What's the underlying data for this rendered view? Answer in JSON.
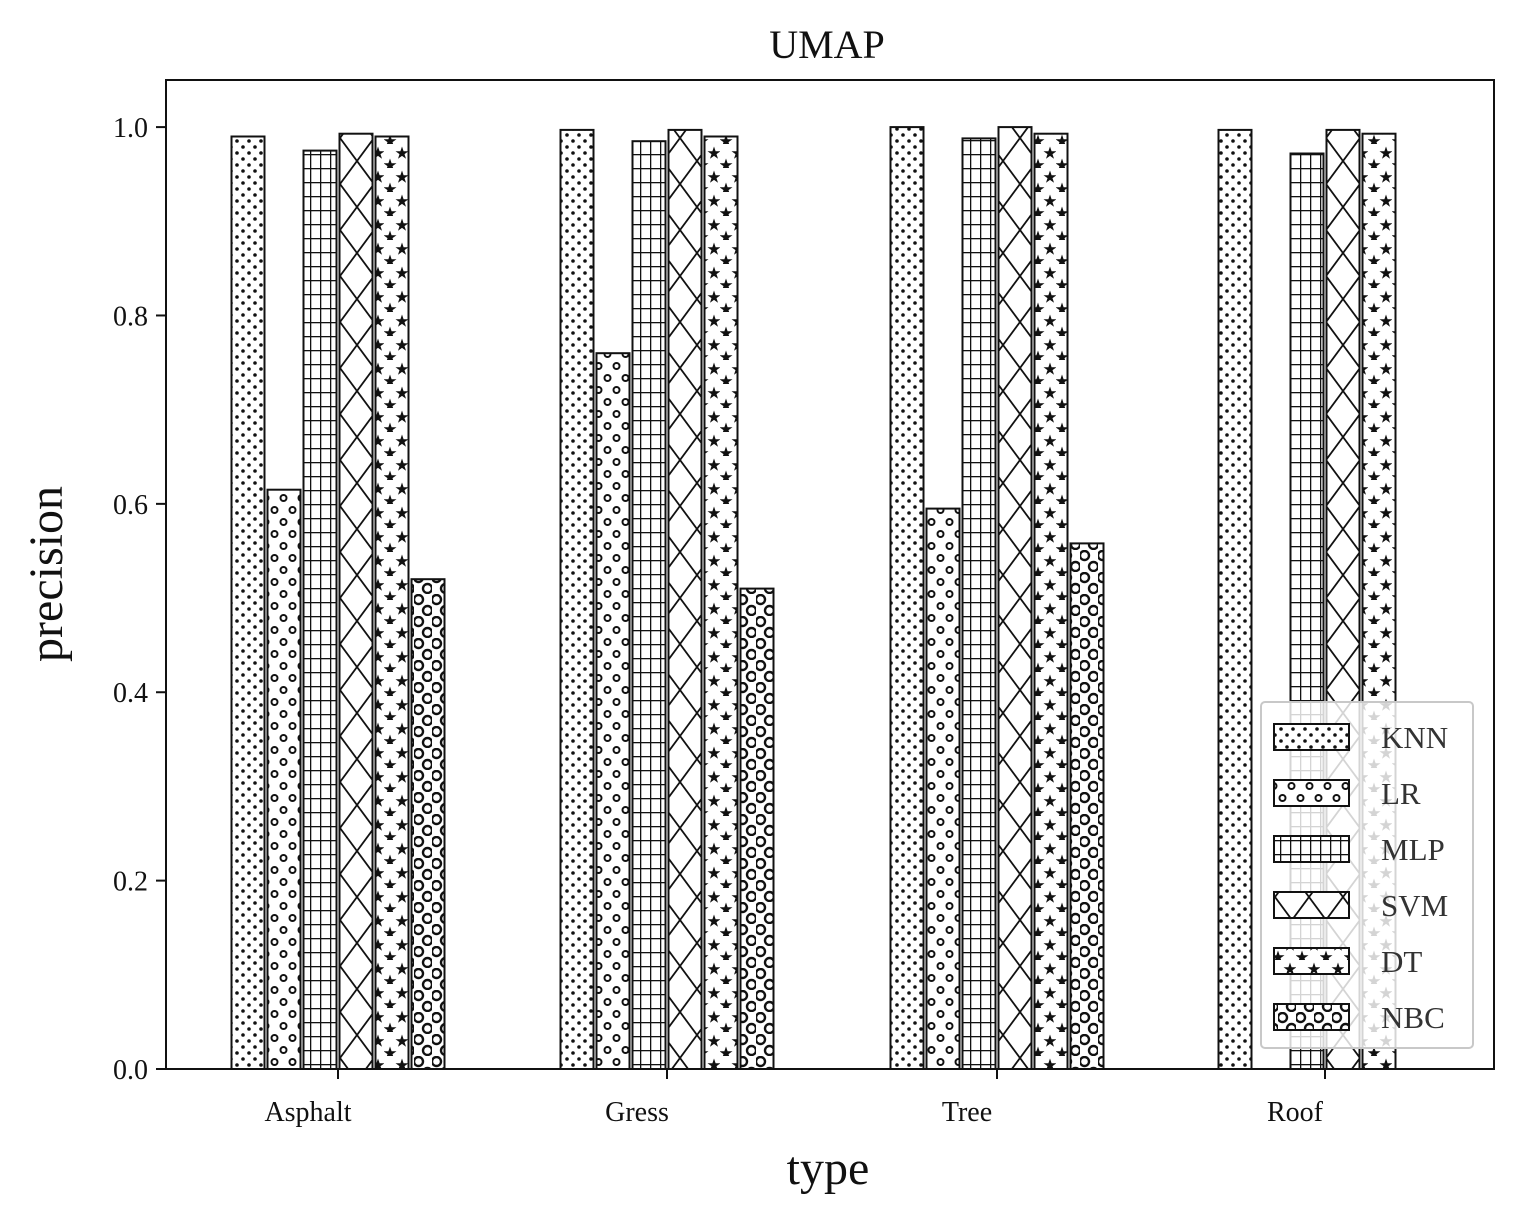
{
  "chart_data": {
    "type": "bar",
    "title": "UMAP",
    "xlabel": "type",
    "ylabel": "precision",
    "categories": [
      "Asphalt",
      "Gress",
      "Tree",
      "Roof"
    ],
    "ylim": [
      0,
      1.05
    ],
    "yticks": [
      "0.0",
      "0.2",
      "0.4",
      "0.6",
      "0.8",
      "1.0"
    ],
    "grid": false,
    "legend_position": "bottom-right",
    "series": [
      {
        "name": "KNN",
        "pattern": "dots",
        "values": [
          0.99,
          0.997,
          1.0,
          0.997
        ]
      },
      {
        "name": "LR",
        "pattern": "circles-small",
        "values": [
          0.615,
          0.76,
          0.595,
          0.0
        ]
      },
      {
        "name": "MLP",
        "pattern": "grid",
        "values": [
          0.975,
          0.985,
          0.988,
          0.972
        ]
      },
      {
        "name": "SVM",
        "pattern": "crosshatch",
        "values": [
          0.993,
          0.997,
          1.0,
          0.997
        ]
      },
      {
        "name": "DT",
        "pattern": "stars",
        "values": [
          0.99,
          0.99,
          0.993,
          0.993
        ]
      },
      {
        "name": "NBC",
        "pattern": "circles-large",
        "values": [
          0.52,
          0.51,
          0.558,
          0.0
        ]
      }
    ],
    "colors": {
      "edge": "#111111",
      "fill": "#ffffff"
    }
  }
}
